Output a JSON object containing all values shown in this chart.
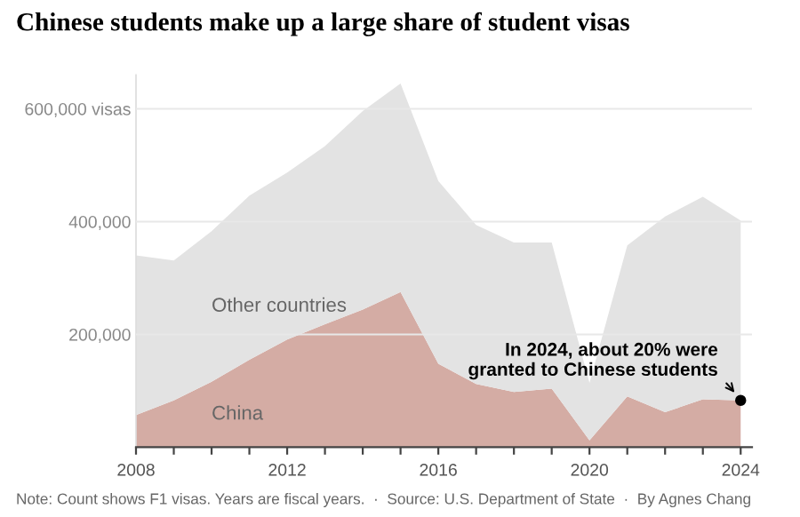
{
  "chart_data": {
    "type": "area",
    "title": "Chinese students make up a large share of student visas",
    "x": [
      2008,
      2009,
      2010,
      2011,
      2012,
      2013,
      2014,
      2015,
      2016,
      2017,
      2018,
      2019,
      2020,
      2021,
      2022,
      2023,
      2024
    ],
    "stacked": true,
    "series": [
      {
        "name": "China",
        "color": "#d4aca4",
        "values": [
          57000,
          83000,
          116000,
          155000,
          191000,
          218000,
          244000,
          275000,
          148000,
          112000,
          98000,
          104000,
          12000,
          90000,
          62000,
          85000,
          83000
        ]
      },
      {
        "name": "Other countries",
        "color": "#e3e3e3",
        "values": [
          283000,
          248000,
          267000,
          291000,
          296000,
          316000,
          352000,
          370000,
          324000,
          282000,
          265000,
          259000,
          102000,
          268000,
          347000,
          359000,
          319000
        ]
      }
    ],
    "xlim": [
      2008,
      2024.3
    ],
    "xticks": [
      2008,
      {
        "value": 2009,
        "label": null
      },
      {
        "value": 2010,
        "label": null
      },
      {
        "value": 2011,
        "label": null
      },
      2012,
      {
        "value": 2013,
        "label": null
      },
      {
        "value": 2014,
        "label": null
      },
      {
        "value": 2015,
        "label": null
      },
      2016,
      {
        "value": 2017,
        "label": null
      },
      {
        "value": 2018,
        "label": null
      },
      {
        "value": 2019,
        "label": null
      },
      2020,
      {
        "value": 2021,
        "label": null
      },
      {
        "value": 2022,
        "label": null
      },
      {
        "value": 2023,
        "label": null
      },
      2024
    ],
    "ylim": [
      0,
      660000
    ],
    "yticks": [
      {
        "value": 200000,
        "label": "200,000"
      },
      {
        "value": 400000,
        "label": "400,000"
      },
      {
        "value": 600000,
        "label": "600,000 visas"
      }
    ],
    "grid": "y",
    "legend": false,
    "annotations": [
      {
        "text": "In 2024, about 20% were\ngranted to Chinese students",
        "x": 2024,
        "y": 83000
      },
      "Note: Count shows F1 visas. Years are fiscal years.  ·  Source: U.S. Department of State  ·  By Agnes Chang"
    ]
  }
}
